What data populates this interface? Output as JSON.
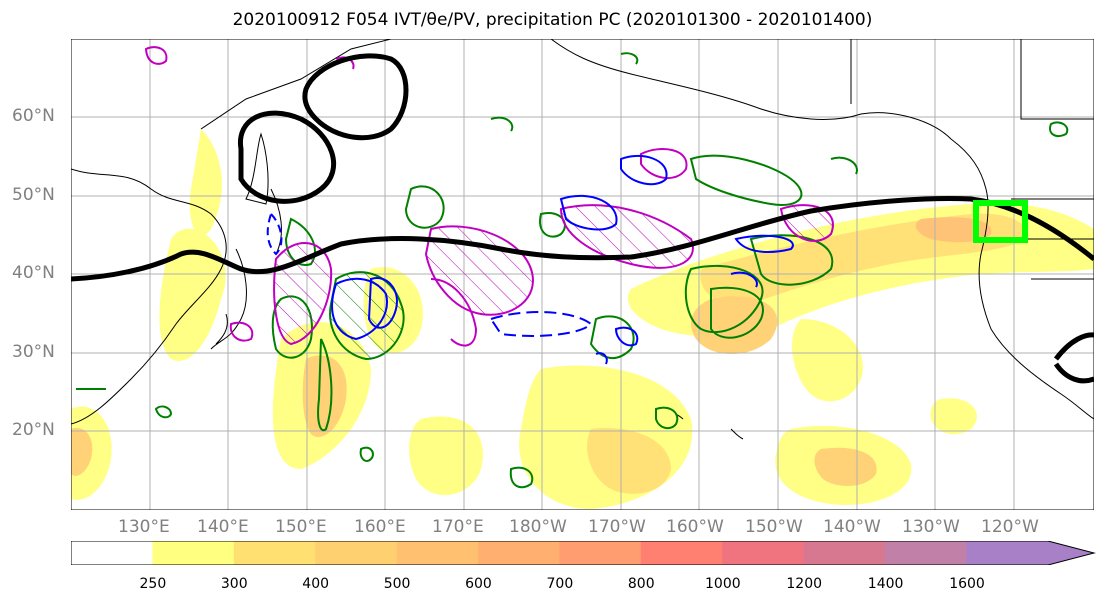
{
  "title": "2020100912 F054 IVT/θe/PV, precipitation PC (2020101300 - 2020101400)",
  "map": {
    "lat_labels": [
      "60°N",
      "50°N",
      "40°N",
      "30°N",
      "20°N"
    ],
    "lon_labels": [
      "130°E",
      "140°E",
      "150°E",
      "160°E",
      "170°E",
      "180°W",
      "170°W",
      "160°W",
      "150°W",
      "140°W",
      "130°W",
      "120°W"
    ],
    "colors": {
      "ivt_contour": "#008000",
      "pv_contour": "#0000ff",
      "theta_e_contour": "#c000c0",
      "jet_line": "#000000",
      "target_box": "#00ff00"
    }
  },
  "colorbar": {
    "labels": [
      "250",
      "300",
      "400",
      "500",
      "600",
      "700",
      "800",
      "1000",
      "1200",
      "1400",
      "1600"
    ],
    "colors": [
      "#ffffff",
      "#ffff80",
      "#ffe070",
      "#ffd070",
      "#ffc070",
      "#ffb070",
      "#ff9c70",
      "#ff8070",
      "#ef7480",
      "#d87890",
      "#c080a8",
      "#a880c8"
    ]
  }
}
